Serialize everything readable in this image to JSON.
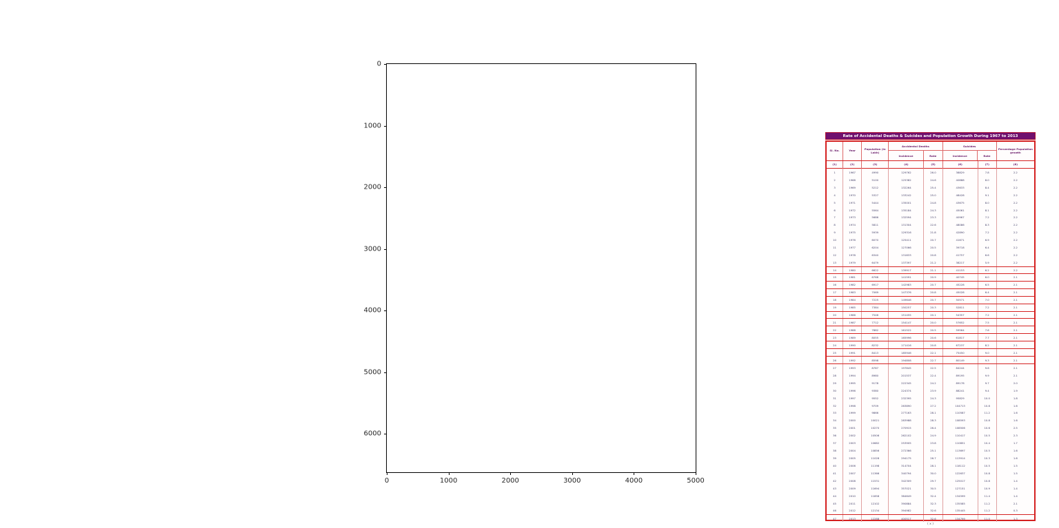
{
  "figure": {
    "x_ticks": [
      "0",
      "1000",
      "2000",
      "3000",
      "4000",
      "5000"
    ],
    "y_ticks": [
      "0",
      "1000",
      "2000",
      "3000",
      "4000",
      "5000",
      "6000"
    ]
  },
  "colors": {
    "title_bg": "#70106e",
    "table_border": "#d42020",
    "header_text": "#6a1b6a",
    "data_text": "#3f3c66"
  },
  "table": {
    "title": "Rate of Accidental Deaths & Suicides and Population Growth During 1967 to 2013",
    "caption": "( x )",
    "headers": {
      "sl": "Sl. No.",
      "year": "Year",
      "population": "Population (in Lakh)",
      "accidental": "Accidental Deaths",
      "suicides": "Suicides",
      "incidence": "Incidence",
      "rate": "Rate",
      "growth": "Percentage Population growth"
    },
    "col_numbers": [
      "(1)",
      "(2)",
      "(3)",
      "(4)",
      "(5)",
      "(6)",
      "(7)",
      "(8)"
    ]
  },
  "chart_data": {
    "type": "table",
    "title": "Rate of Accidental Deaths & Suicides and Population Growth During 1967 to 2013",
    "columns": [
      "Sl. No.",
      "Year",
      "Population (in Lakh)",
      "Accidental Deaths Incidence",
      "Accidental Deaths Rate",
      "Suicides Incidence",
      "Suicides Rate",
      "Percentage Population growth"
    ],
    "boxed_row_indices": [
      13,
      14,
      15,
      16,
      17,
      18,
      19,
      20,
      21,
      22,
      23,
      24,
      25
    ],
    "separator_above_indices": [
      46
    ],
    "rows": [
      [
        "1",
        "1967",
        "4990",
        "129762",
        "26.0",
        "38829",
        "7.8",
        "2.2"
      ],
      [
        "2",
        "1968",
        "5100",
        "125382",
        "24.6",
        "40888",
        "8.0",
        "2.2"
      ],
      [
        "3",
        "1969",
        "5212",
        "132264",
        "25.4",
        "43633",
        "8.4",
        "2.2"
      ],
      [
        "4",
        "1970",
        "5327",
        "133242",
        "25.0",
        "48428",
        "9.1",
        "2.2"
      ],
      [
        "5",
        "1971",
        "5444",
        "135001",
        "24.8",
        "43675",
        "8.0",
        "2.2"
      ],
      [
        "6",
        "1972",
        "5564",
        "135184",
        "24.3",
        "45061",
        "8.1",
        "2.2"
      ],
      [
        "7",
        "1973",
        "5686",
        "132594",
        "23.3",
        "40967",
        "7.2",
        "2.2"
      ],
      [
        "8",
        "1974",
        "5811",
        "131304",
        "22.6",
        "48086",
        "8.3",
        "2.2"
      ],
      [
        "9",
        "1975",
        "5939",
        "129316",
        "21.8",
        "42890",
        "7.2",
        "2.2"
      ],
      [
        "10",
        "1976",
        "6070",
        "125411",
        "20.7",
        "41671",
        "6.9",
        "2.2"
      ],
      [
        "11",
        "1977",
        "6204",
        "127066",
        "20.5",
        "39718",
        "6.4",
        "2.2"
      ],
      [
        "12",
        "1978",
        "6340",
        "131833",
        "20.8",
        "41757",
        "6.6",
        "2.2"
      ],
      [
        "13",
        "1979",
        "6479",
        "137397",
        "21.2",
        "38217",
        "5.9",
        "2.2"
      ],
      [
        "14",
        "1980",
        "6622",
        "139917",
        "21.1",
        "41153",
        "6.2",
        "2.2"
      ],
      [
        "15",
        "1981",
        "6768",
        "141591",
        "20.9",
        "40745",
        "6.0",
        "2.1"
      ],
      [
        "16",
        "1982",
        "6917",
        "142983",
        "20.7",
        "45228",
        "6.5",
        "2.1"
      ],
      [
        "17",
        "1983",
        "7069",
        "147376",
        "20.8",
        "45028",
        "6.4",
        "2.1"
      ],
      [
        "18",
        "1984",
        "7225",
        "149646",
        "20.7",
        "50571",
        "7.0",
        "2.1"
      ],
      [
        "19",
        "1985",
        "7384",
        "150257",
        "20.3",
        "52811",
        "7.2",
        "2.1"
      ],
      [
        "20",
        "1986",
        "7546",
        "151455",
        "20.1",
        "54357",
        "7.2",
        "2.1"
      ],
      [
        "21",
        "1987",
        "7712",
        "154147",
        "20.0",
        "57652",
        "7.5",
        "2.1"
      ],
      [
        "22",
        "1988",
        "7882",
        "161522",
        "20.5",
        "59564",
        "7.6",
        "2.1"
      ],
      [
        "23",
        "1989",
        "8055",
        "165996",
        "20.6",
        "61817",
        "7.7",
        "2.1"
      ],
      [
        "24",
        "1990",
        "8232",
        "171416",
        "20.8",
        "67237",
        "8.2",
        "2.1"
      ],
      [
        "25",
        "1991",
        "8413",
        "185946",
        "22.1",
        "75450",
        "9.0",
        "2.1"
      ],
      [
        "26",
        "1992",
        "8598",
        "194808",
        "22.7",
        "80149",
        "9.3",
        "2.1"
      ],
      [
        "27",
        "1993",
        "8787",
        "197845",
        "22.5",
        "84244",
        "9.6",
        "2.1"
      ],
      [
        "28",
        "1994",
        "8980",
        "201537",
        "22.4",
        "89195",
        "9.9",
        "2.1"
      ],
      [
        "29",
        "1995",
        "9178",
        "222345",
        "24.2",
        "89178",
        "9.7",
        "2.0"
      ],
      [
        "30",
        "1996",
        "9380",
        "224374",
        "23.9",
        "88241",
        "9.4",
        "1.9"
      ],
      [
        "31",
        "1997",
        "9552",
        "232395",
        "24.3",
        "95829",
        "10.0",
        "1.8"
      ],
      [
        "32",
        "1998",
        "9709",
        "263890",
        "27.2",
        "104713",
        "10.8",
        "1.6"
      ],
      [
        "33",
        "1999",
        "9866",
        "277163",
        "28.1",
        "110587",
        "11.2",
        "1.6"
      ],
      [
        "34",
        "2000",
        "10021",
        "283988",
        "28.3",
        "108593",
        "10.8",
        "1.6"
      ],
      [
        "35",
        "2001",
        "10270",
        "270915",
        "26.4",
        "108506",
        "10.6",
        "2.5"
      ],
      [
        "36",
        "2002",
        "10506",
        "262102",
        "24.9",
        "110417",
        "10.5",
        "2.3"
      ],
      [
        "37",
        "2003",
        "10682",
        "253905",
        "23.8",
        "110851",
        "10.4",
        "1.7"
      ],
      [
        "38",
        "2004",
        "10856",
        "272366",
        "25.1",
        "113697",
        "10.5",
        "1.6"
      ],
      [
        "39",
        "2005",
        "11028",
        "294175",
        "26.7",
        "113914",
        "10.3",
        "1.6"
      ],
      [
        "40",
        "2006",
        "11198",
        "314704",
        "28.1",
        "118112",
        "10.5",
        "1.5"
      ],
      [
        "41",
        "2007",
        "11366",
        "340794",
        "30.0",
        "122637",
        "10.8",
        "1.5"
      ],
      [
        "42",
        "2008",
        "11531",
        "342309",
        "29.7",
        "125017",
        "10.8",
        "1.4"
      ],
      [
        "43",
        "2009",
        "11694",
        "357021",
        "30.5",
        "127151",
        "10.9",
        "1.4"
      ],
      [
        "44",
        "2010",
        "11858",
        "384649",
        "32.4",
        "134599",
        "11.4",
        "1.4"
      ],
      [
        "45",
        "2011",
        "12102",
        "390884",
        "32.3",
        "135585",
        "11.2",
        "2.1"
      ],
      [
        "46",
        "2012",
        "12134",
        "394982",
        "32.6",
        "135445",
        "11.2",
        "0.3"
      ],
      [
        "47",
        "2013",
        "12288",
        "400517",
        "32.6",
        "134799",
        "11.0",
        "1.3"
      ]
    ]
  }
}
